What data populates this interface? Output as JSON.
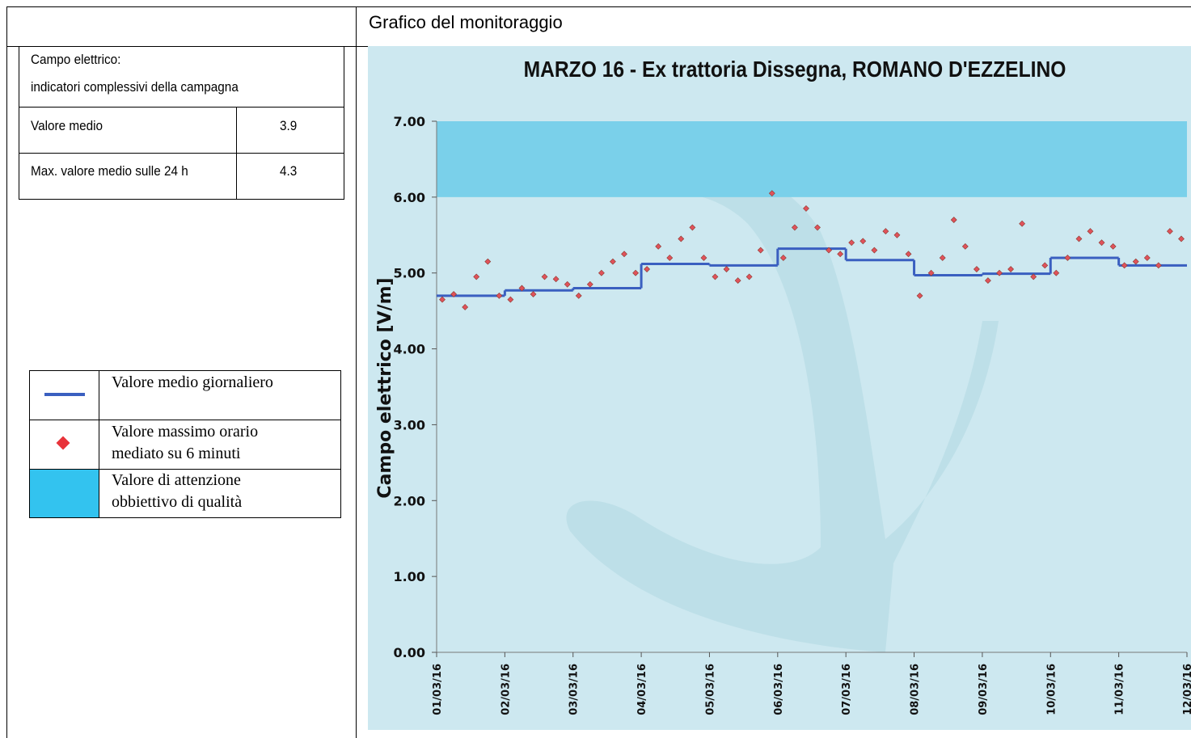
{
  "header": {
    "title": "Grafico del monitoraggio"
  },
  "table": {
    "title_lines": [
      "Campo elettrico:",
      "indicatori complessivi della campagna"
    ],
    "rows": [
      [
        "Valore medio",
        3.9
      ],
      [
        "Max. valore medio sulle 24 h",
        4.3
      ]
    ]
  },
  "legend": {
    "items": [
      [
        "Valore medio giornaliero"
      ],
      [
        "Valore massimo orario",
        "mediato su 6 minuti"
      ],
      [
        "Valore di attenzione",
        "obbiettivo di qualità"
      ]
    ]
  },
  "chart_data": {
    "type": "scatter",
    "title": "MARZO 16 - Ex trattoria Dissegna, ROMANO D'EZZELINO",
    "y_label": "Campo elettrico [V/m]",
    "xlim": [
      0,
      11
    ],
    "xticks": [
      {
        "value": 0,
        "label": "01/03/16"
      },
      {
        "value": 1,
        "label": "02/03/16"
      },
      {
        "value": 2,
        "label": "03/03/16"
      },
      {
        "value": 3,
        "label": "04/03/16"
      },
      {
        "value": 4,
        "label": "05/03/16"
      },
      {
        "value": 5,
        "label": "06/03/16"
      },
      {
        "value": 6,
        "label": "07/03/16"
      },
      {
        "value": 7,
        "label": "08/03/16"
      },
      {
        "value": 8,
        "label": "09/03/16"
      },
      {
        "value": 9,
        "label": "10/03/16"
      },
      {
        "value": 10,
        "label": "11/03/16"
      },
      {
        "value": 11,
        "label": "12/03/16"
      }
    ],
    "ylim": [
      0,
      7
    ],
    "yticks": [
      {
        "value": 0,
        "label": "0.00"
      },
      {
        "value": 1,
        "label": "1.00"
      },
      {
        "value": 2,
        "label": "2.00"
      },
      {
        "value": 3,
        "label": "3.00"
      },
      {
        "value": 4,
        "label": "4.00"
      },
      {
        "value": 5,
        "label": "5.00"
      },
      {
        "value": 6,
        "label": "6.00"
      },
      {
        "value": 7,
        "label": "7.00"
      }
    ],
    "attention_band": [
      6,
      7
    ],
    "band_color": "#7ad0ea",
    "series": [
      {
        "type": "scatter",
        "color": "#e0525a",
        "x": [
          0.083,
          0.25,
          0.417,
          0.583,
          0.75,
          0.917,
          1.083,
          1.25,
          1.417,
          1.583,
          1.75,
          1.917,
          2.083,
          2.25,
          2.417,
          2.583,
          2.75,
          2.917,
          3.083,
          3.25,
          3.417,
          3.583,
          3.75,
          3.917,
          4.083,
          4.25,
          4.417,
          4.583,
          4.75,
          4.917,
          5.083,
          5.25,
          5.417,
          5.583,
          5.75,
          5.917,
          6.083,
          6.25,
          6.417,
          6.583,
          6.75,
          6.917,
          7.083,
          7.25,
          7.417,
          7.583,
          7.75,
          7.917,
          8.083,
          8.25,
          8.417,
          8.583,
          8.75,
          8.917,
          9.083,
          9.25,
          9.417,
          9.583,
          9.75,
          9.917,
          10.083,
          10.25,
          10.417,
          10.583,
          10.75,
          10.917
        ],
        "values": [
          4.65,
          4.72,
          4.55,
          4.95,
          5.15,
          4.7,
          4.65,
          4.8,
          4.72,
          4.95,
          4.92,
          4.85,
          4.7,
          4.85,
          5.0,
          5.15,
          5.25,
          5.0,
          5.05,
          5.35,
          5.2,
          5.45,
          5.6,
          5.2,
          4.95,
          5.05,
          4.9,
          4.95,
          5.3,
          6.05,
          5.2,
          5.6,
          5.85,
          5.6,
          5.3,
          5.25,
          5.4,
          5.42,
          5.3,
          5.55,
          5.5,
          5.25,
          4.7,
          5.0,
          5.2,
          5.7,
          5.35,
          5.05,
          4.9,
          5.0,
          5.05,
          5.65,
          4.95,
          5.1,
          5.0,
          5.2,
          5.45,
          5.55,
          5.4,
          5.35,
          5.1,
          5.15,
          5.2,
          5.1,
          5.55,
          5.45
        ]
      },
      {
        "type": "step",
        "color": "#3a5fc0",
        "values": [
          4.7,
          4.77,
          4.8,
          5.12,
          5.1,
          5.32,
          5.17,
          4.97,
          4.99,
          5.2,
          5.1
        ]
      }
    ]
  }
}
